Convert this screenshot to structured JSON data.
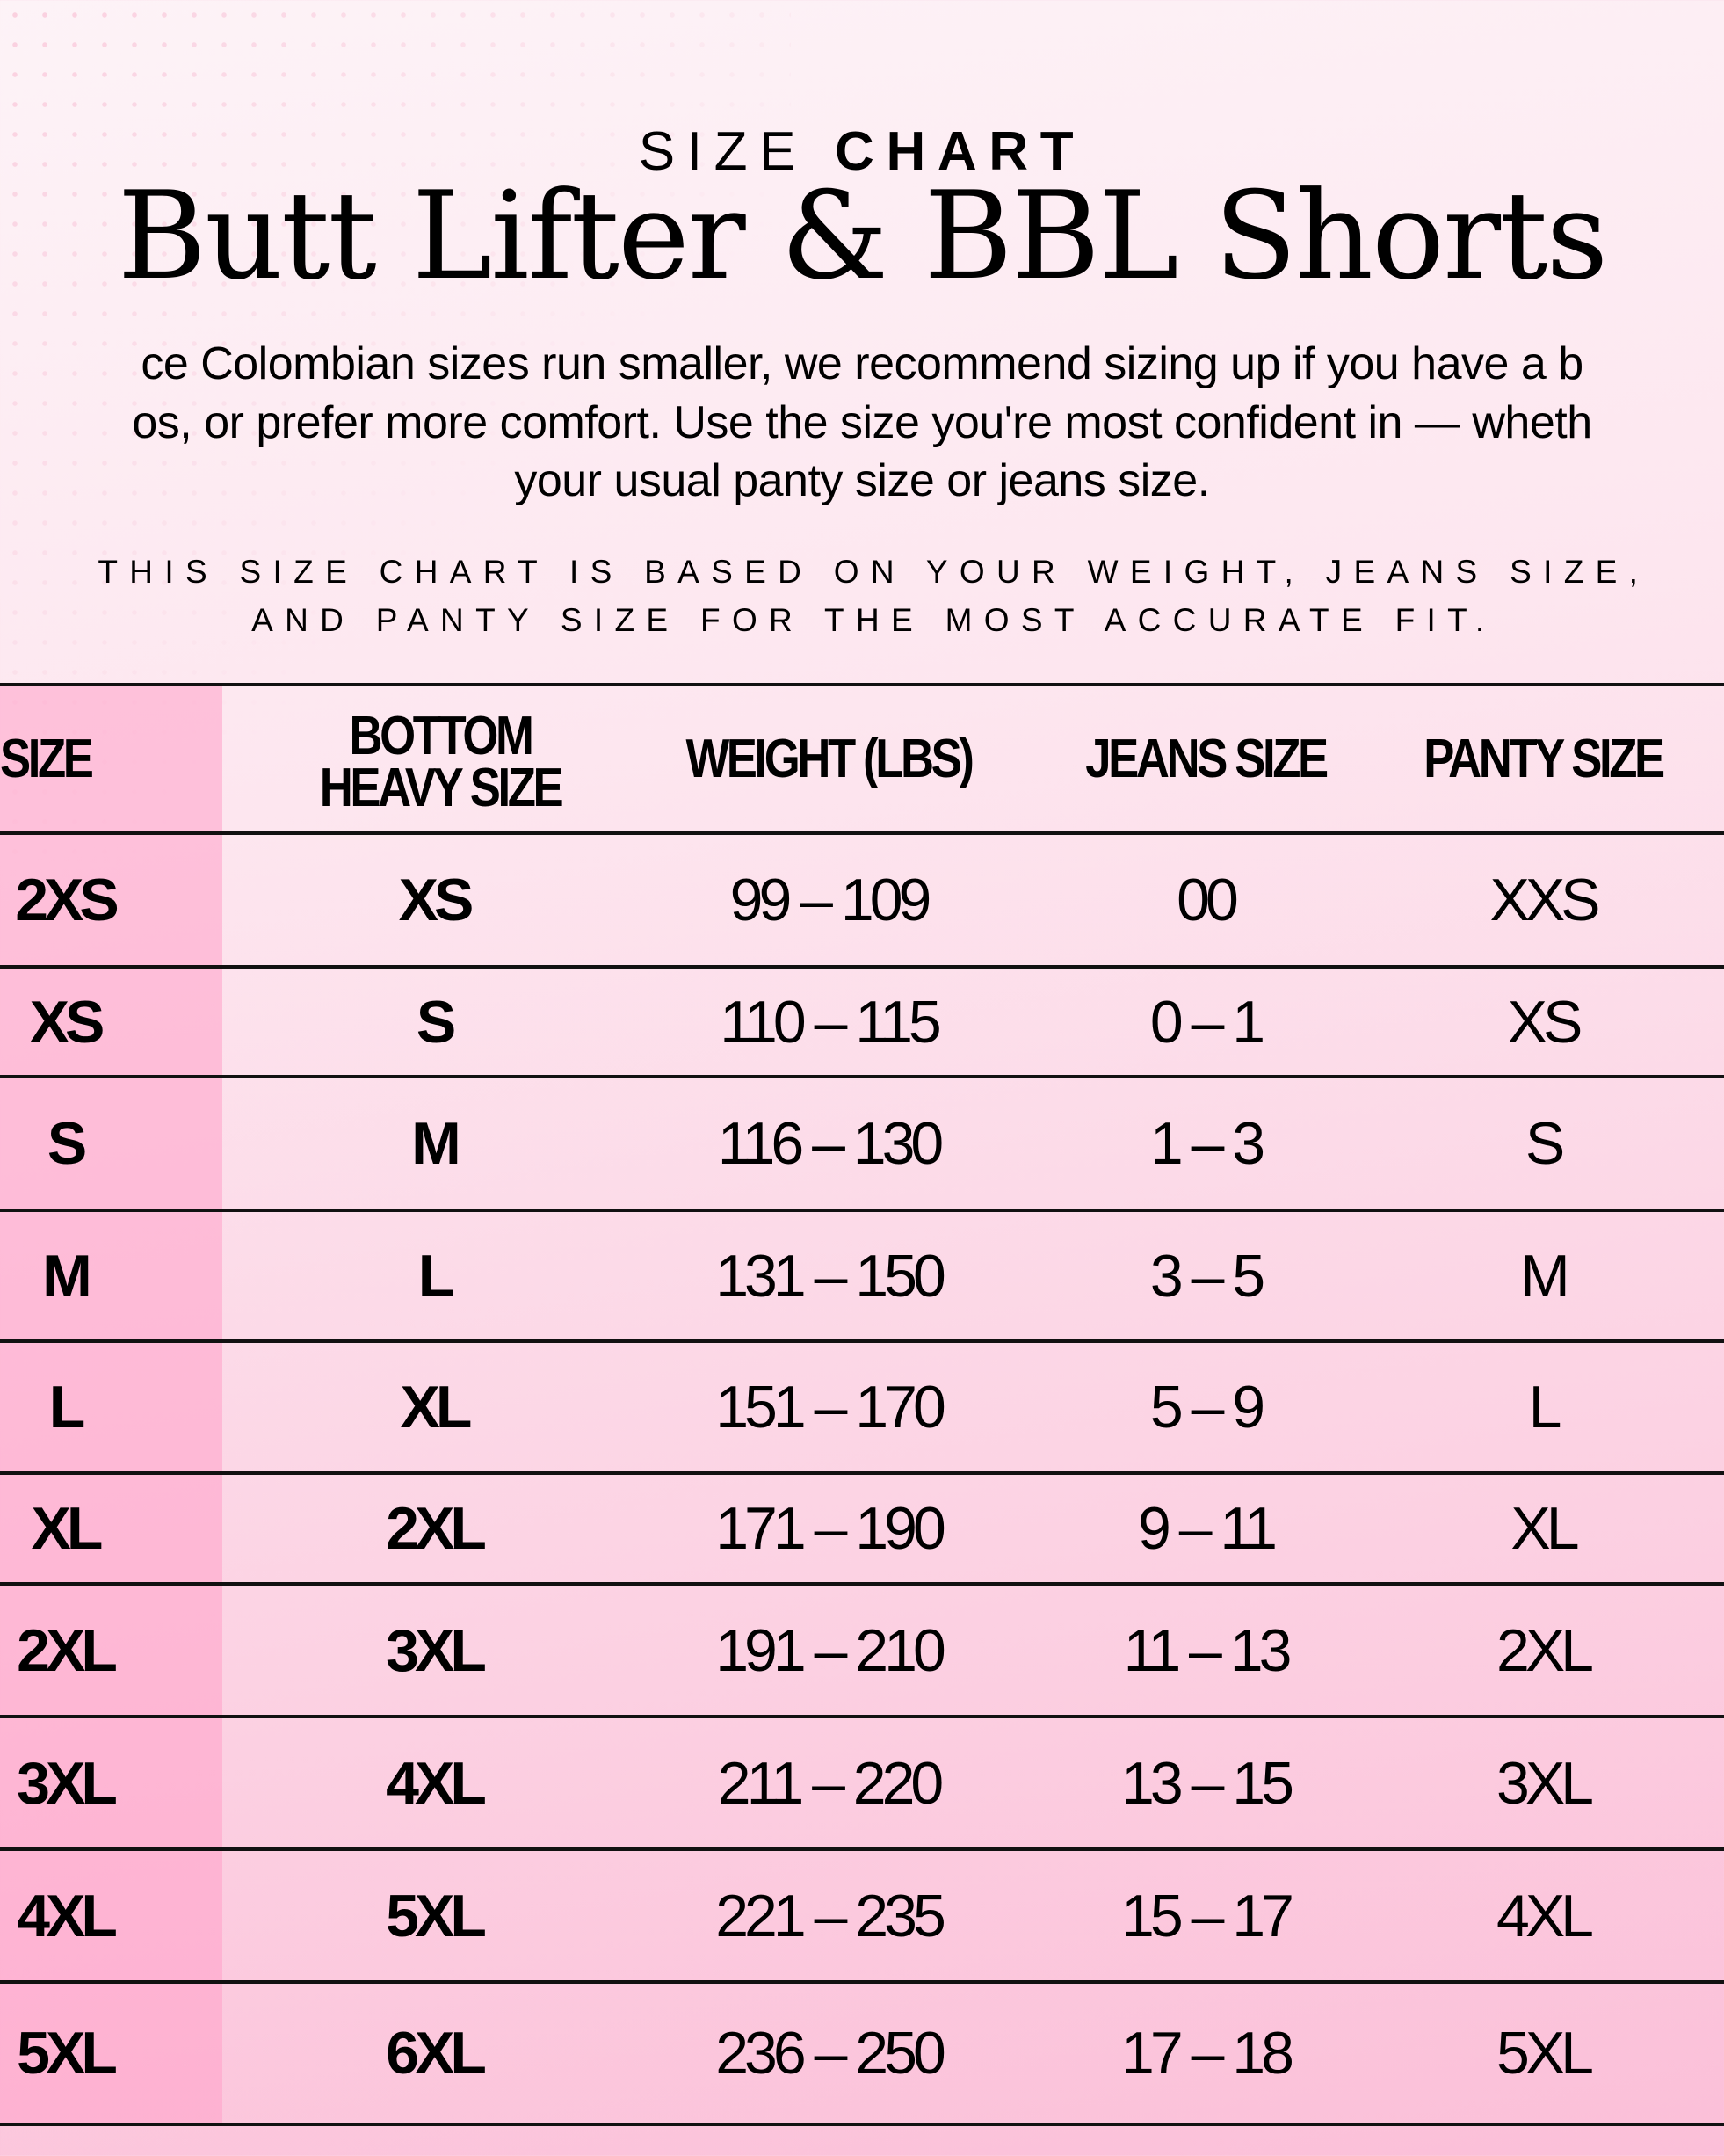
{
  "header": {
    "kicker_light": "SIZE",
    "kicker_bold": "CHART",
    "title": "Butt Lifter & BBL Shorts",
    "paragraph_lines": [
      "ce Colombian sizes run smaller, we recommend sizing up if you have a b",
      "os, or prefer more comfort. Use the size you're most confident in — wheth",
      "your usual panty size or jeans size."
    ],
    "note_lines": [
      "THIS SIZE CHART IS BASED ON YOUR WEIGHT, JEANS SIZE,",
      "AND PANTY SIZE FOR THE MOST ACCURATE FIT."
    ]
  },
  "table": {
    "columns": [
      "SIZE",
      "BOTTOM HEAVY SIZE",
      "WEIGHT (LBS)",
      "JEANS SIZE",
      "PANTY SIZE"
    ],
    "bottom_heavy_lines": [
      "BOTTOM",
      "HEAVY SIZE"
    ],
    "rows": [
      [
        "2XS",
        "XS",
        "99 – 109",
        "00",
        "XXS"
      ],
      [
        "XS",
        "S",
        "110 – 115",
        "0 – 1",
        "XS"
      ],
      [
        "S",
        "M",
        "116 – 130",
        "1 – 3",
        "S"
      ],
      [
        "M",
        "L",
        "131 – 150",
        "3 – 5",
        "M"
      ],
      [
        "L",
        "XL",
        "151 – 170",
        "5 – 9",
        "L"
      ],
      [
        "XL",
        "2XL",
        "171 – 190",
        "9 – 11",
        "XL"
      ],
      [
        "2XL",
        "3XL",
        "191 – 210",
        "11 – 13",
        "2XL"
      ],
      [
        "3XL",
        "4XL",
        "211 – 220",
        "13 – 15",
        "3XL"
      ],
      [
        "4XL",
        "5XL",
        "221 – 235",
        "15 – 17",
        "4XL"
      ],
      [
        "5XL",
        "6XL",
        "236 – 250",
        "17 – 18",
        "5XL"
      ]
    ]
  },
  "colors": {
    "accent_pink": "#fbbfd8",
    "size_column": "#ffb0d0",
    "rule": "#111111"
  }
}
